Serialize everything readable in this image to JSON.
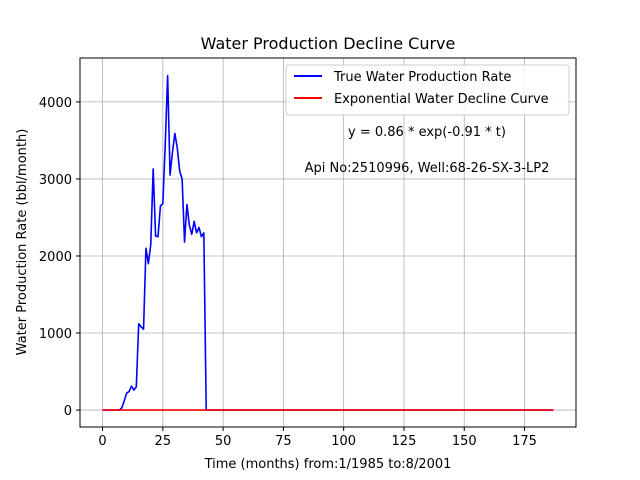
{
  "chart_data": {
    "type": "line",
    "title": "Water Production Decline Curve",
    "xlabel": "Time (months) from:1/1985 to:8/2001",
    "ylabel": "Water Production Rate (bbl/month)",
    "xlim": [
      -9.35,
      196.35
    ],
    "ylim": [
      -220,
      4570
    ],
    "x_ticks": [
      0,
      25,
      50,
      75,
      100,
      125,
      150,
      175
    ],
    "y_ticks": [
      0,
      1000,
      2000,
      3000,
      4000
    ],
    "grid": true,
    "legend_position": "top-right",
    "annotations": [
      "y = 0.86 * exp(-0.91 * t)",
      "Api No:2510996, Well:68-26-SX-3-LP2"
    ],
    "series": [
      {
        "name": "True Water Production Rate",
        "color": "#0000ff",
        "x": [
          0,
          1,
          2,
          3,
          4,
          5,
          6,
          7,
          8,
          9,
          10,
          11,
          12,
          13,
          14,
          15,
          16,
          17,
          18,
          19,
          20,
          21,
          22,
          23,
          24,
          25,
          26,
          27,
          28,
          29,
          30,
          31,
          32,
          33,
          34,
          35,
          36,
          37,
          38,
          39,
          40,
          41,
          42,
          43,
          44,
          187
        ],
        "y": [
          0,
          0,
          0,
          0,
          0,
          0,
          0,
          0,
          30,
          120,
          220,
          240,
          310,
          260,
          300,
          1120,
          1080,
          1050,
          2100,
          1900,
          2150,
          3130,
          2260,
          2250,
          2650,
          2680,
          3450,
          4340,
          3050,
          3350,
          3590,
          3400,
          3100,
          3000,
          2180,
          2670,
          2400,
          2280,
          2450,
          2300,
          2370,
          2250,
          2300,
          0,
          0,
          0
        ]
      },
      {
        "name": "Exponential Water Decline Curve",
        "color": "#ff0000",
        "x": [
          0,
          187
        ],
        "y": [
          0,
          0
        ]
      }
    ]
  }
}
